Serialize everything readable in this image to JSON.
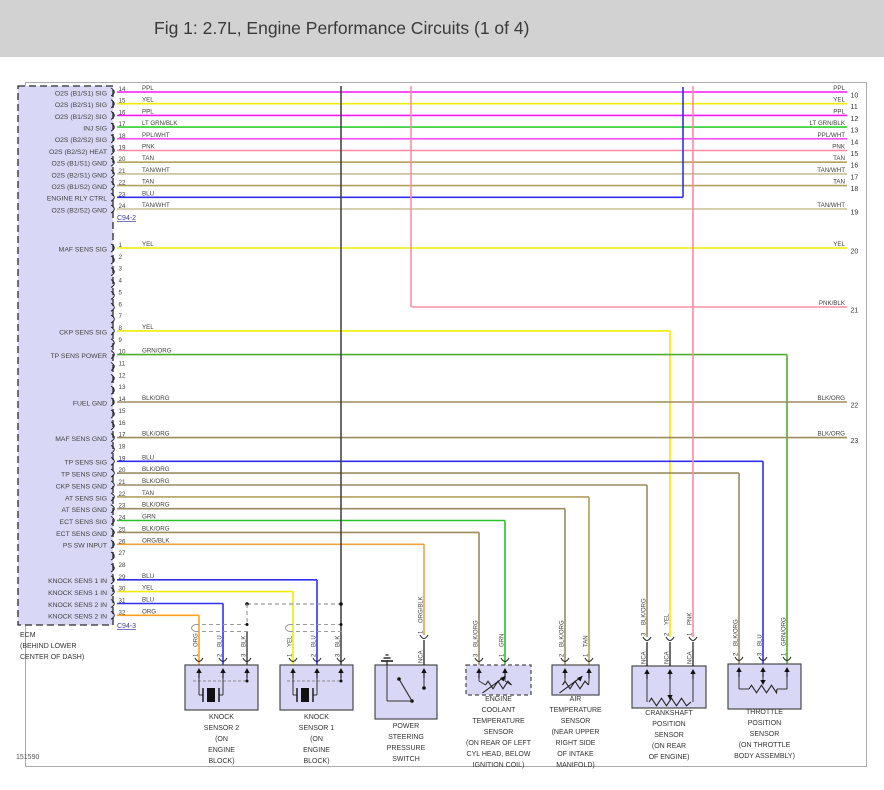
{
  "title": "Fig 1: 2.7L, Engine Performance Circuits (1 of 4)",
  "drawing_number": "151590",
  "palette": {
    "PPL": "#fa14fa",
    "YEL": "#f0ec00",
    "LT GRN/BLK": "#30cd30",
    "PPL/WHT": "#fb4df9",
    "PNK": "#fa8aa4",
    "TAN": "#b2a05e",
    "TAN/WHT": "#c9bf98",
    "BLU": "#3030f2",
    "GRN": "#28c228",
    "GRN/ORG": "#4fae2c",
    "BLK/ORG": "#9c8b60",
    "ORG": "#ffa01e",
    "ORG/BLK": "#f0a23e",
    "PNK/BLK": "#f98fa7",
    "BLK": "#3c3c3c"
  },
  "ecm": {
    "name_lines": [
      "ECM",
      "(BEHIND LOWER",
      "CENTER OF DASH)"
    ],
    "connectors": [
      {
        "name": "C94-2",
        "pins": [
          {
            "num": "14",
            "label": "O2S (B1/S1) SIG",
            "color": "PPL",
            "tag": "10"
          },
          {
            "num": "15",
            "label": "O2S (B2/S1) SIG",
            "color": "YEL",
            "tag": "11"
          },
          {
            "num": "16",
            "label": "O2S (B1/S2) SIG",
            "color": "PPL",
            "tag": "12"
          },
          {
            "num": "17",
            "label": "INJ SIG",
            "color": "LT GRN/BLK",
            "tag": "13"
          },
          {
            "num": "18",
            "label": "O2S (B2/S2) SIG",
            "color": "PPL/WHT",
            "tag": "14"
          },
          {
            "num": "19",
            "label": "O2S (B2/S2) HEAT",
            "color": "PNK",
            "tag": "15"
          },
          {
            "num": "20",
            "label": "O2S (B1/S1) GND",
            "color": "TAN",
            "tag": "16"
          },
          {
            "num": "21",
            "label": "O2S (B2/S1) GND",
            "color": "TAN/WHT",
            "tag": "17"
          },
          {
            "num": "22",
            "label": "O2S (B1/S2) GND",
            "color": "TAN",
            "tag": "18"
          },
          {
            "num": "23",
            "label": "ENGINE RLY CTRL",
            "color": "BLU"
          },
          {
            "num": "24",
            "label": "O2S (B2/S2) GND",
            "color": "TAN/WHT",
            "tag": "19"
          }
        ]
      },
      {
        "name": "C94-3",
        "pins": [
          {
            "num": "1",
            "label": "MAF SENS SIG",
            "color": "YEL",
            "tag": "20"
          },
          {
            "num": "2"
          },
          {
            "num": "3"
          },
          {
            "num": "4"
          },
          {
            "num": "5"
          },
          {
            "num": "6"
          },
          {
            "num": "7"
          },
          {
            "num": "8",
            "label": "CKP SENS SIG",
            "color": "YEL"
          },
          {
            "num": "9"
          },
          {
            "num": "10",
            "label": "TP SENS POWER",
            "color": "GRN/ORG"
          },
          {
            "num": "11"
          },
          {
            "num": "12"
          },
          {
            "num": "13"
          },
          {
            "num": "14",
            "label": "FUEL GND",
            "color": "BLK/ORG",
            "tag": "22"
          },
          {
            "num": "15"
          },
          {
            "num": "16"
          },
          {
            "num": "17",
            "label": "MAF SENS GND",
            "color": "BLK/ORG",
            "tag": "23"
          },
          {
            "num": "18"
          },
          {
            "num": "19",
            "label": "TP SENS SIG",
            "color": "BLU"
          },
          {
            "num": "20",
            "label": "TP SENS GND",
            "color": "BLK/ORG"
          },
          {
            "num": "21",
            "label": "CKP SENS GND",
            "color": "BLK/ORG"
          },
          {
            "num": "22",
            "label": "AT SENS SIG",
            "color": "TAN"
          },
          {
            "num": "23",
            "label": "AT SENS GND",
            "color": "BLK/ORG"
          },
          {
            "num": "24",
            "label": "ECT SENS SIG",
            "color": "GRN"
          },
          {
            "num": "25",
            "label": "ECT SENS GND",
            "color": "BLK/ORG"
          },
          {
            "num": "26",
            "label": "PS SW INPUT",
            "color": "ORG/BLK"
          },
          {
            "num": "27"
          },
          {
            "num": "28"
          },
          {
            "num": "29",
            "label": "KNOCK SENS 1 IN",
            "color": "BLU"
          },
          {
            "num": "30",
            "label": "KNOCK SENS 1 IN",
            "color": "YEL"
          },
          {
            "num": "31",
            "label": "KNOCK SENS 2 IN",
            "color": "BLU"
          },
          {
            "num": "32",
            "label": "KNOCK SENS 2 IN",
            "color": "ORG"
          }
        ]
      }
    ]
  },
  "offpage": [
    {
      "color": "PNK/BLK",
      "tag": "21"
    },
    {
      "color": "PNK"
    },
    {
      "color": "BLK"
    }
  ],
  "sensors": [
    {
      "name": "knock-sensor-2",
      "caption": [
        "KNOCK",
        "SENSOR 2",
        "(ON",
        "ENGINE",
        "BLOCK)"
      ],
      "pins": [
        {
          "id": "1",
          "color": "ORG"
        },
        {
          "id": "2",
          "color": "BLU"
        },
        {
          "id": "3",
          "color": "BLK"
        }
      ]
    },
    {
      "name": "knock-sensor-1",
      "caption": [
        "KNOCK",
        "SENSOR 1",
        "(ON",
        "ENGINE",
        "BLOCK)"
      ],
      "pins": [
        {
          "id": "1",
          "color": "YEL"
        },
        {
          "id": "2",
          "color": "BLU"
        },
        {
          "id": "3",
          "color": "BLK"
        }
      ]
    },
    {
      "name": "power-steering-pressure-switch",
      "caption": [
        "POWER",
        "STEERING",
        "PRESSURE",
        "SWITCH"
      ],
      "pins": [
        {
          "id": "1",
          "color": "ORG/BLK",
          "nca": true
        }
      ]
    },
    {
      "name": "engine-coolant-temperature-sensor",
      "caption": [
        "ENGINE",
        "COOLANT",
        "TEMPERATURE",
        "SENSOR",
        "(ON REAR OF LEFT",
        "CYL HEAD, BELOW",
        "IGNITION COIL)"
      ],
      "pins": [
        {
          "id": "3",
          "color": "BLK/ORG"
        },
        {
          "id": "1",
          "color": "GRN"
        }
      ]
    },
    {
      "name": "air-temperature-sensor",
      "caption": [
        "AIR",
        "TEMPERATURE",
        "SENSOR",
        "(NEAR UPPER",
        "RIGHT SIDE",
        "OF INTAKE",
        "MANIFOLD)"
      ],
      "pins": [
        {
          "id": "2",
          "color": "BLK/ORG"
        },
        {
          "id": "1",
          "color": "TAN"
        }
      ]
    },
    {
      "name": "crankshaft-position-sensor",
      "caption": [
        "CRANKSHAFT",
        "POSITION",
        "SENSOR",
        "(ON REAR",
        "OF ENGINE)"
      ],
      "pins": [
        {
          "id": "3",
          "color": "BLK/ORG",
          "nca": true
        },
        {
          "id": "2",
          "color": "YEL",
          "nca": true
        },
        {
          "id": "1",
          "color": "PNK",
          "nca": true
        }
      ]
    },
    {
      "name": "throttle-position-sensor",
      "caption": [
        "THROTTLE",
        "POSITION",
        "SENSOR",
        "(ON THROTTLE",
        "BODY ASSEMBLY)"
      ],
      "pins": [
        {
          "id": "2",
          "color": "BLK/ORG"
        },
        {
          "id": "3",
          "color": "BLU"
        },
        {
          "id": "1",
          "color": "GRN/ORG"
        }
      ]
    }
  ]
}
